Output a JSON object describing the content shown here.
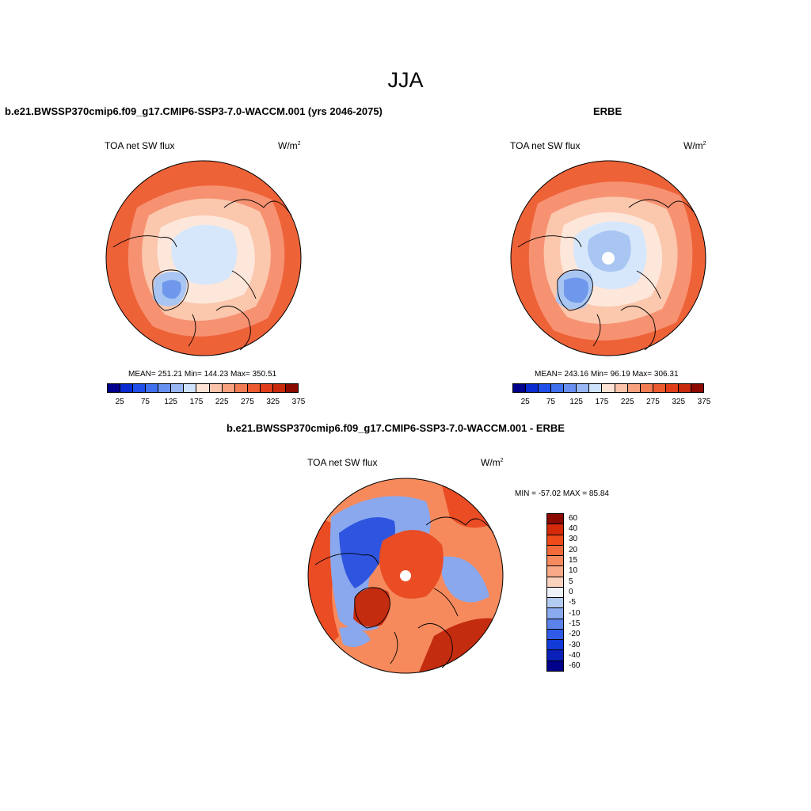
{
  "title": "JJA",
  "panels": {
    "model": {
      "title": "b.e21.BWSSP370cmip6.f09_g17.CMIP6-SSP3-7.0-WACCM.001 (yrs 2046-2075)",
      "variable": "TOA net SW flux",
      "units_base": "W/m",
      "units_exp": "2",
      "stats": "MEAN= 251.21  Min= 144.23  Max= 350.51"
    },
    "obs": {
      "title": "ERBE",
      "variable": "TOA net SW flux",
      "units_base": "W/m",
      "units_exp": "2",
      "stats": "MEAN= 243.16  Min=  96.19  Max= 306.31"
    },
    "diff": {
      "title": "b.e21.BWSSP370cmip6.f09_g17.CMIP6-SSP3-7.0-WACCM.001 - ERBE",
      "variable": "TOA net SW flux",
      "units_base": "W/m",
      "units_exp": "2",
      "stats": "MIN = -57.02 MAX =  85.84"
    }
  },
  "colorbar_abs": {
    "colors": [
      "#00008b",
      "#0a2bd0",
      "#1f4fe8",
      "#3f71ee",
      "#6790f0",
      "#98b6f3",
      "#cfe2fb",
      "#fde3d4",
      "#fbc3aa",
      "#f7a17f",
      "#f27c53",
      "#ec5a2f",
      "#e03d1a",
      "#c72a0c",
      "#8a0a00"
    ],
    "tick_labels": [
      "25",
      "75",
      "125",
      "175",
      "225",
      "275",
      "325",
      "375"
    ]
  },
  "colorbar_diff": {
    "colors": [
      "#8a0a00",
      "#d42a0a",
      "#ee4a1a",
      "#f26a3a",
      "#f58a5e",
      "#f8aa88",
      "#fbd2bd",
      "#eef2f8",
      "#b4cbf1",
      "#8aaaef",
      "#5b83ec",
      "#2f5be6",
      "#123ad8",
      "#0a20b8",
      "#00008b"
    ],
    "tick_labels": [
      "60",
      "40",
      "30",
      "20",
      "15",
      "10",
      "5",
      "0",
      "-5",
      "-10",
      "-15",
      "-20",
      "-30",
      "-40",
      "-60"
    ]
  },
  "map_colors": {
    "ring_outer": "#ee6238",
    "ring_mid": "#f69272",
    "ring_inner": "#fbc7ad",
    "pale": "#fde7da",
    "ice_light": "#d7e7fb",
    "ice_mid": "#a9c6f3",
    "ice_dark": "#6f97ec",
    "diff_red": "#ea4c24",
    "diff_red_dark": "#c42c10",
    "diff_orange": "#f68a5c",
    "diff_blue": "#2f55e0",
    "diff_blue_light": "#8aa8ee"
  }
}
